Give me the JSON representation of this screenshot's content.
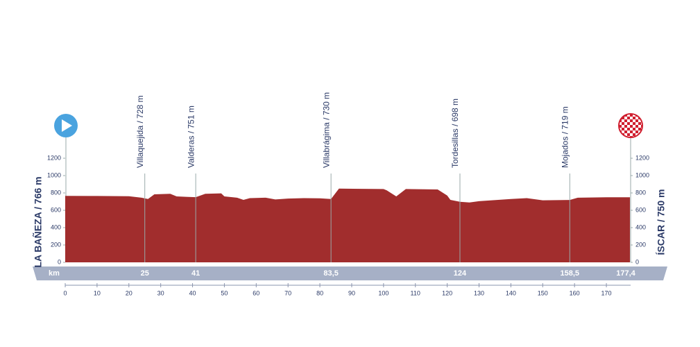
{
  "chart_data": {
    "type": "area",
    "color": "#a12d2d",
    "start": "LA BAÑEZA / 766 m",
    "finish": "ÍSCAR / 750 m",
    "x_unit": "km",
    "x": [
      0,
      10,
      20,
      24,
      26,
      28,
      33,
      35,
      38,
      41,
      44,
      49,
      50,
      54,
      56,
      58,
      63,
      66,
      70,
      75,
      80,
      83.5,
      86,
      100,
      101,
      104,
      107,
      117,
      120,
      121,
      124,
      127,
      130,
      140,
      145,
      150,
      158.5,
      161,
      170,
      177.4
    ],
    "values": [
      766,
      765,
      762,
      745,
      730,
      784,
      790,
      760,
      755,
      751,
      790,
      795,
      760,
      745,
      720,
      740,
      745,
      725,
      735,
      740,
      738,
      730,
      850,
      845,
      830,
      760,
      845,
      840,
      770,
      720,
      698,
      690,
      705,
      730,
      740,
      715,
      719,
      745,
      750,
      750
    ],
    "xlim": [
      0,
      177.4
    ],
    "xticks": [
      0,
      10,
      20,
      30,
      40,
      50,
      60,
      70,
      80,
      90,
      100,
      110,
      120,
      130,
      140,
      150,
      160,
      170
    ],
    "ylim": [
      0,
      1200
    ],
    "yticks": [
      0,
      200,
      400,
      600,
      800,
      1000,
      1200
    ],
    "places": [
      {
        "label": "Villaquejida / 728 m",
        "km": 25
      },
      {
        "label": "Valderas / 751 m",
        "km": 41
      },
      {
        "label": "Villabrágima / 730 m",
        "km": {
          "value": 83.5,
          "label": "83,5"
        }
      },
      {
        "label": "Tordesillas / 698 m",
        "km": 124
      },
      {
        "label": "Mojados / 719 m",
        "km": {
          "value": 158.5,
          "label": "158,5"
        }
      }
    ],
    "finish_km": {
      "value": 177.4,
      "label": "177,4"
    }
  }
}
